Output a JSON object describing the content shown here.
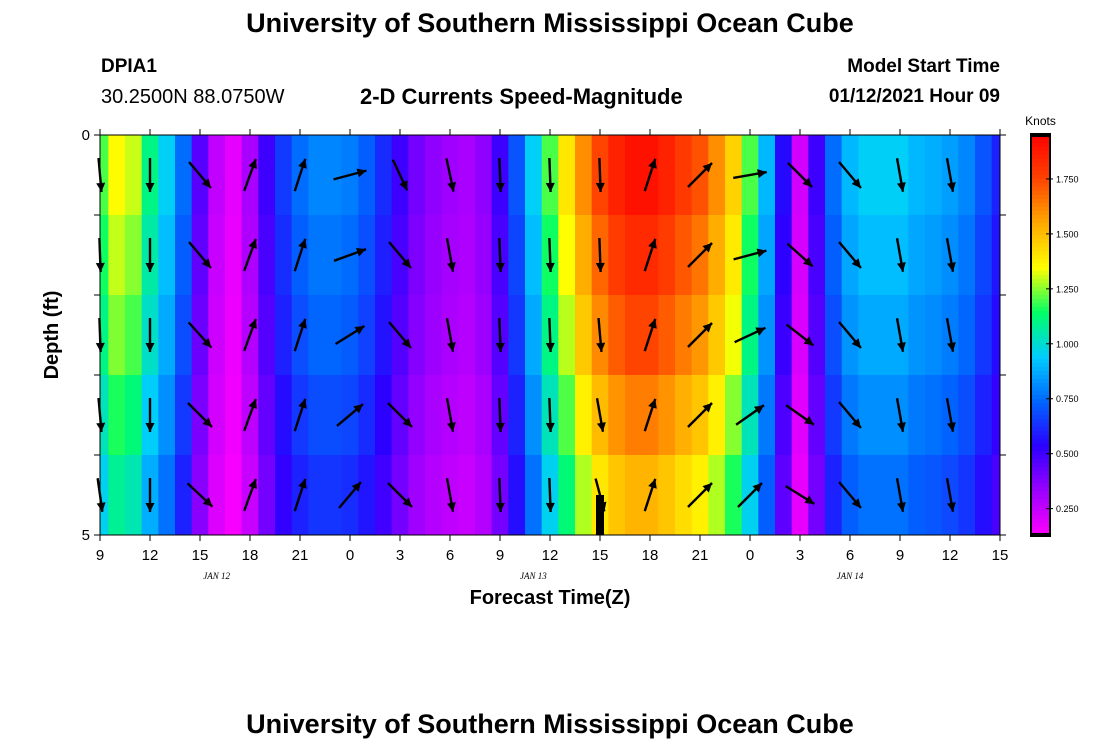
{
  "header": {
    "title_top": "University of Southern Mississippi Ocean Cube",
    "station_id": "DPIA1",
    "station_coords": "30.2500N 88.0750W",
    "plot_title": "2-D Currents Speed-Magnitude",
    "model_start_label": "Model Start Time",
    "model_start_value": "01/12/2021 Hour 09"
  },
  "footer": {
    "title_bottom": "University of Southern Mississippi Ocean Cube"
  },
  "colors": {
    "ramp": [
      "#ff00ff",
      "#9900ff",
      "#2a00ff",
      "#0066ff",
      "#00ccff",
      "#00ff66",
      "#ffff00",
      "#ffaa00",
      "#ff4400",
      "#ff0000"
    ],
    "current_marker": "#000000",
    "arrows": "#000000"
  },
  "chart_data": {
    "type": "heatmap",
    "title": "2-D Currents Speed-Magnitude",
    "xlabel": "Forecast Time(Z)",
    "ylabel": "Depth (ft)",
    "x_tick_labels": [
      "9",
      "12",
      "15",
      "18",
      "21",
      "0",
      "3",
      "6",
      "9",
      "12",
      "15",
      "18",
      "21",
      "0",
      "3",
      "6",
      "9",
      "12",
      "15"
    ],
    "date_labels": [
      {
        "text": "JAN 12",
        "hours_from_start": 7
      },
      {
        "text": "JAN 13",
        "hours_from_start": 26
      },
      {
        "text": "JAN 14",
        "hours_from_start": 45
      }
    ],
    "x_range_hours_from_start": [
      0,
      54
    ],
    "time_step_hours": 1,
    "ylim": [
      0,
      5
    ],
    "y_tick_labels": [
      "0",
      "5"
    ],
    "depth_bin_count": 5,
    "current_time_hours_from_start": 30,
    "speed_profile_knots": [
      1.2,
      1.35,
      1.3,
      1.1,
      0.95,
      0.75,
      0.45,
      0.25,
      0.18,
      0.3,
      0.5,
      0.65,
      0.75,
      0.8,
      0.8,
      0.78,
      0.72,
      0.62,
      0.5,
      0.4,
      0.35,
      0.32,
      0.3,
      0.35,
      0.5,
      0.7,
      0.95,
      1.2,
      1.4,
      1.6,
      1.75,
      1.85,
      1.9,
      1.9,
      1.85,
      1.78,
      1.72,
      1.6,
      1.45,
      1.2,
      0.9,
      0.55,
      0.22,
      0.5,
      0.75,
      0.9,
      0.95,
      0.95,
      0.95,
      0.9,
      0.88,
      0.85,
      0.8,
      0.7,
      0.6,
      0.55,
      0.55
    ],
    "depth_factors": [
      1.0,
      0.96,
      0.92,
      0.86,
      0.8
    ],
    "arrows": [
      {
        "hours_from_start": 0,
        "angle_deg_cw_from_north": [
          175,
          178,
          178,
          175,
          172
        ]
      },
      {
        "hours_from_start": 3,
        "angle_deg_cw_from_north": [
          180,
          180,
          180,
          180,
          180
        ]
      },
      {
        "hours_from_start": 6,
        "angle_deg_cw_from_north": [
          140,
          140,
          138,
          135,
          133
        ]
      },
      {
        "hours_from_start": 9,
        "angle_deg_cw_from_north": [
          20,
          20,
          20,
          20,
          20
        ]
      },
      {
        "hours_from_start": 12,
        "angle_deg_cw_from_north": [
          18,
          18,
          18,
          18,
          18
        ]
      },
      {
        "hours_from_start": 15,
        "angle_deg_cw_from_north": [
          75,
          70,
          58,
          50,
          40
        ]
      },
      {
        "hours_from_start": 18,
        "angle_deg_cw_from_north": [
          155,
          140,
          140,
          135,
          135
        ]
      },
      {
        "hours_from_start": 21,
        "angle_deg_cw_from_north": [
          168,
          170,
          170,
          170,
          170
        ]
      },
      {
        "hours_from_start": 24,
        "angle_deg_cw_from_north": [
          178,
          178,
          178,
          178,
          178
        ]
      },
      {
        "hours_from_start": 27,
        "angle_deg_cw_from_north": [
          178,
          178,
          178,
          178,
          178
        ]
      },
      {
        "hours_from_start": 30,
        "angle_deg_cw_from_north": [
          178,
          178,
          175,
          170,
          165
        ]
      },
      {
        "hours_from_start": 33,
        "angle_deg_cw_from_north": [
          18,
          18,
          18,
          18,
          18
        ]
      },
      {
        "hours_from_start": 36,
        "angle_deg_cw_from_north": [
          45,
          45,
          45,
          45,
          45
        ]
      },
      {
        "hours_from_start": 39,
        "angle_deg_cw_from_north": [
          80,
          75,
          65,
          55,
          45
        ]
      },
      {
        "hours_from_start": 42,
        "angle_deg_cw_from_north": [
          135,
          132,
          128,
          125,
          122
        ]
      },
      {
        "hours_from_start": 45,
        "angle_deg_cw_from_north": [
          140,
          140,
          140,
          140,
          140
        ]
      },
      {
        "hours_from_start": 48,
        "angle_deg_cw_from_north": [
          170,
          170,
          170,
          170,
          170
        ]
      },
      {
        "hours_from_start": 51,
        "angle_deg_cw_from_north": [
          170,
          170,
          170,
          170,
          170
        ]
      }
    ],
    "colorbar": {
      "unit_label": "Knots",
      "min": 0.13,
      "max": 1.95,
      "tick_values": [
        0.25,
        0.5,
        0.75,
        1.0,
        1.25,
        1.5,
        1.75
      ],
      "tick_labels": [
        "0.250",
        "0.500",
        "0.750",
        "1.000",
        "1.250",
        "1.500",
        "1.750"
      ]
    }
  }
}
